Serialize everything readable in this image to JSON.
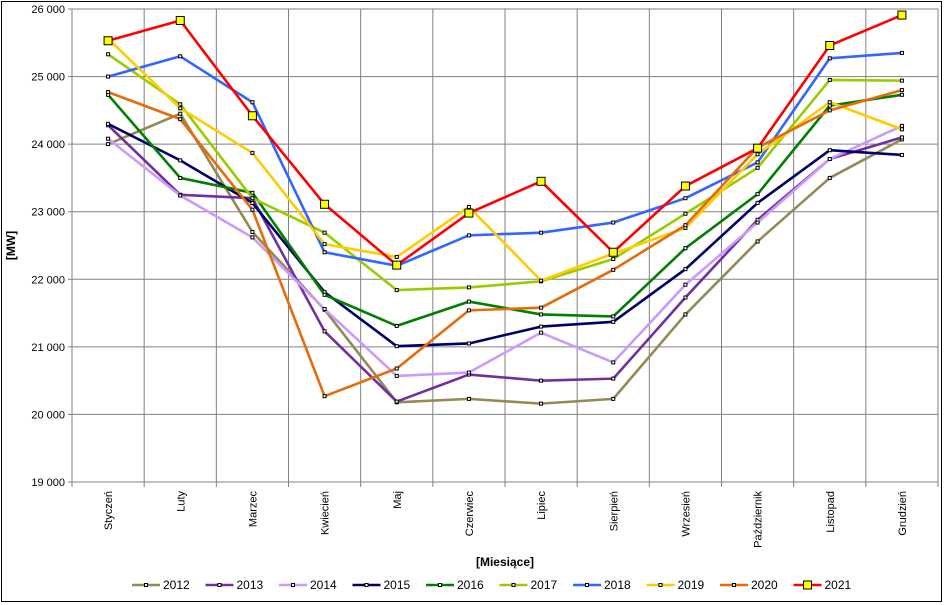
{
  "chart_data": {
    "type": "line",
    "title": "",
    "xlabel": "[Miesiące]",
    "ylabel": "[MW]",
    "ylim": [
      19000,
      26000
    ],
    "ytick_step": 1000,
    "ytick_labels": [
      "19 000",
      "20 000",
      "21 000",
      "22 000",
      "23 000",
      "24 000",
      "25 000",
      "26 000"
    ],
    "grid": true,
    "legend_position": "bottom",
    "categories": [
      "Styczeń",
      "Luty",
      "Marzec",
      "Kwiecień",
      "Maj",
      "Czerwiec",
      "Lipiec",
      "Sierpień",
      "Wrzesień",
      "Październik",
      "Listopad",
      "Grudzień"
    ],
    "series": [
      {
        "name": "2012",
        "color": "#948A54",
        "marker": "small",
        "values": [
          24000,
          24450,
          22700,
          21550,
          20180,
          20230,
          20160,
          20230,
          21480,
          22560,
          23500,
          24070
        ]
      },
      {
        "name": "2013",
        "color": "#7030A0",
        "marker": "small",
        "values": [
          24280,
          23250,
          23200,
          21230,
          20190,
          20590,
          20500,
          20530,
          21730,
          22880,
          23780,
          24100
        ]
      },
      {
        "name": "2014",
        "color": "#CC99FF",
        "marker": "small",
        "values": [
          24080,
          23240,
          22620,
          21560,
          20570,
          20620,
          21210,
          20770,
          21920,
          22840,
          23780,
          24270
        ]
      },
      {
        "name": "2015",
        "color": "#000066",
        "marker": "small",
        "values": [
          24300,
          23760,
          23130,
          21810,
          21010,
          21050,
          21300,
          21370,
          22150,
          23130,
          23910,
          23840
        ]
      },
      {
        "name": "2016",
        "color": "#007F00",
        "marker": "small",
        "values": [
          24730,
          23500,
          23280,
          21770,
          21310,
          21670,
          21480,
          21450,
          22460,
          23260,
          24570,
          24730
        ]
      },
      {
        "name": "2017",
        "color": "#99CC00",
        "marker": "small",
        "values": [
          25330,
          24590,
          23200,
          22690,
          21840,
          21880,
          21970,
          22300,
          22970,
          23650,
          24950,
          24940
        ]
      },
      {
        "name": "2018",
        "color": "#3366FF",
        "marker": "small",
        "values": [
          25000,
          25300,
          24620,
          22400,
          22200,
          22650,
          22690,
          22840,
          23200,
          23730,
          25270,
          25350
        ]
      },
      {
        "name": "2019",
        "color": "#FFCC00",
        "marker": "small",
        "values": [
          25560,
          24530,
          23870,
          22520,
          22330,
          23070,
          21980,
          22380,
          22760,
          23850,
          24620,
          24220
        ]
      },
      {
        "name": "2020",
        "color": "#E46C0A",
        "marker": "small",
        "values": [
          24770,
          24370,
          23030,
          20270,
          20680,
          21540,
          21580,
          22140,
          22800,
          23950,
          24500,
          24800
        ]
      },
      {
        "name": "2021",
        "color": "#FF0000",
        "marker": "large",
        "values": [
          25530,
          25830,
          24420,
          23110,
          22210,
          22980,
          23450,
          22400,
          23380,
          23940,
          25460,
          25910
        ]
      }
    ]
  }
}
